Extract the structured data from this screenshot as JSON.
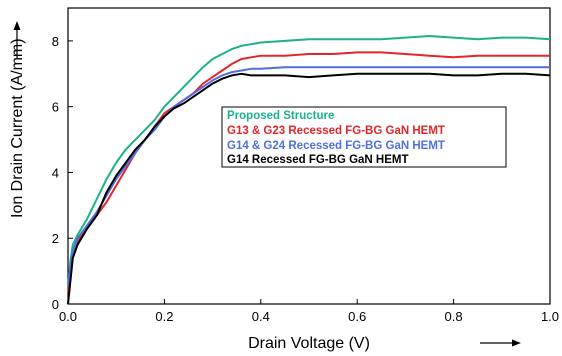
{
  "chart_data": {
    "type": "line",
    "xlabel": "Drain Voltage (V)",
    "ylabel": "Ion Drain Current (A/mm)",
    "xlim": [
      0,
      1.0
    ],
    "ylim": [
      0,
      9
    ],
    "x_ticks": [
      "0.0",
      "0.2",
      "0.4",
      "0.6",
      "0.8",
      "1.0"
    ],
    "y_ticks": [
      "0",
      "2",
      "4",
      "6",
      "8"
    ],
    "legend_placement": "center",
    "grid": false,
    "series": [
      {
        "name": "Proposed Structure",
        "color": "#19b38a",
        "x": [
          0,
          0.005,
          0.01,
          0.02,
          0.04,
          0.06,
          0.08,
          0.1,
          0.12,
          0.14,
          0.16,
          0.18,
          0.2,
          0.22,
          0.24,
          0.26,
          0.28,
          0.3,
          0.32,
          0.34,
          0.36,
          0.38,
          0.4,
          0.45,
          0.5,
          0.55,
          0.6,
          0.65,
          0.7,
          0.75,
          0.8,
          0.85,
          0.9,
          0.95,
          1.0
        ],
        "y": [
          0.5,
          1.3,
          1.8,
          2.1,
          2.6,
          3.2,
          3.8,
          4.3,
          4.7,
          5.0,
          5.3,
          5.6,
          6.0,
          6.3,
          6.6,
          6.9,
          7.2,
          7.45,
          7.6,
          7.75,
          7.85,
          7.9,
          7.95,
          8.0,
          8.05,
          8.05,
          8.05,
          8.05,
          8.1,
          8.15,
          8.1,
          8.05,
          8.1,
          8.1,
          8.05
        ]
      },
      {
        "name": "G13 & G23 Recessed FG-BG GaN HEMT",
        "color": "#e2262b",
        "x": [
          0,
          0.01,
          0.02,
          0.04,
          0.06,
          0.08,
          0.1,
          0.12,
          0.14,
          0.16,
          0.18,
          0.2,
          0.22,
          0.24,
          0.26,
          0.28,
          0.3,
          0.32,
          0.34,
          0.36,
          0.38,
          0.4,
          0.45,
          0.5,
          0.55,
          0.6,
          0.65,
          0.7,
          0.75,
          0.8,
          0.85,
          0.9,
          0.95,
          1.0
        ],
        "y": [
          0.3,
          1.5,
          1.9,
          2.3,
          2.7,
          3.1,
          3.6,
          4.1,
          4.6,
          5.0,
          5.4,
          5.8,
          6.0,
          6.2,
          6.4,
          6.7,
          6.9,
          7.1,
          7.3,
          7.45,
          7.5,
          7.55,
          7.55,
          7.6,
          7.6,
          7.65,
          7.65,
          7.6,
          7.55,
          7.5,
          7.55,
          7.55,
          7.55,
          7.55
        ]
      },
      {
        "name": "G14 & G24 Recessed FG-BG GaN HEMT",
        "color": "#4f6fe0",
        "x": [
          0,
          0.01,
          0.02,
          0.04,
          0.06,
          0.08,
          0.1,
          0.12,
          0.14,
          0.16,
          0.18,
          0.2,
          0.22,
          0.24,
          0.26,
          0.28,
          0.3,
          0.32,
          0.34,
          0.36,
          0.38,
          0.4,
          0.45,
          0.5,
          0.55,
          0.6,
          0.65,
          0.7,
          0.75,
          0.8,
          0.85,
          0.9,
          0.95,
          1.0
        ],
        "y": [
          0.6,
          1.6,
          2.0,
          2.4,
          2.8,
          3.3,
          3.8,
          4.2,
          4.6,
          5.0,
          5.3,
          5.7,
          6.0,
          6.2,
          6.4,
          6.6,
          6.8,
          6.95,
          7.05,
          7.1,
          7.15,
          7.15,
          7.2,
          7.2,
          7.2,
          7.2,
          7.2,
          7.2,
          7.2,
          7.2,
          7.2,
          7.2,
          7.2,
          7.2
        ]
      },
      {
        "name": "G14 Recessed FG-BG GaN HEMT",
        "color": "#000000",
        "x": [
          0,
          0.01,
          0.02,
          0.04,
          0.06,
          0.08,
          0.1,
          0.12,
          0.14,
          0.16,
          0.18,
          0.2,
          0.22,
          0.24,
          0.26,
          0.28,
          0.3,
          0.32,
          0.34,
          0.36,
          0.38,
          0.4,
          0.45,
          0.5,
          0.55,
          0.6,
          0.65,
          0.7,
          0.75,
          0.8,
          0.85,
          0.9,
          0.95,
          1.0
        ],
        "y": [
          0.0,
          1.4,
          1.8,
          2.3,
          2.7,
          3.4,
          3.9,
          4.3,
          4.7,
          5.0,
          5.4,
          5.7,
          5.95,
          6.1,
          6.3,
          6.5,
          6.7,
          6.85,
          6.95,
          7.0,
          6.95,
          6.95,
          6.95,
          6.9,
          6.95,
          7.0,
          7.0,
          7.0,
          7.0,
          6.95,
          6.95,
          7.0,
          7.0,
          6.95
        ]
      }
    ]
  }
}
